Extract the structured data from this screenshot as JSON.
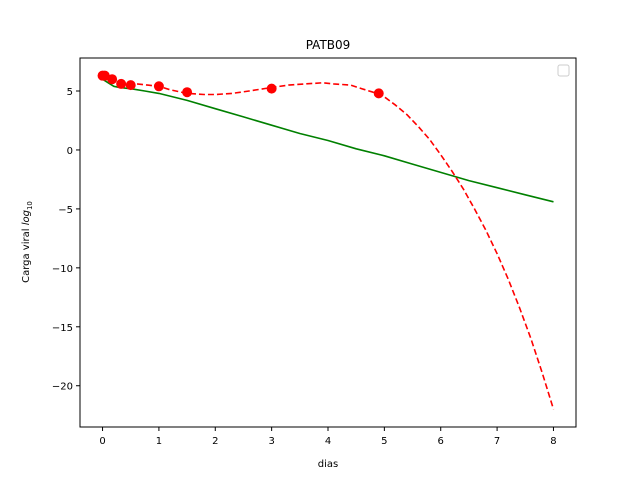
{
  "chart_data": {
    "type": "line",
    "title": "PATB09",
    "xlabel": "dias",
    "ylabel": "Carga viral",
    "ylabel_math": "log",
    "ylabel_sub": "10",
    "xlim": [
      -0.4,
      8.4
    ],
    "ylim": [
      -23.5,
      7.8
    ],
    "xticks": [
      0,
      1,
      2,
      3,
      4,
      5,
      6,
      7,
      8
    ],
    "yticks": [
      5,
      0,
      -5,
      -10,
      -15,
      -20
    ],
    "ytick_labels": [
      "5",
      "0",
      "−5",
      "−10",
      "−15",
      "−20"
    ],
    "legend": {
      "placement": "top-right",
      "entries": []
    },
    "series": [
      {
        "kind": "points",
        "color": "#ff0000",
        "x": [
          0.0,
          0.04,
          0.17,
          0.33,
          0.5,
          1.0,
          1.5,
          3.0,
          4.9
        ],
        "y": [
          6.3,
          6.3,
          6.0,
          5.6,
          5.5,
          5.4,
          4.9,
          5.2,
          4.8
        ]
      },
      {
        "kind": "dashed-line",
        "color": "#ff0000",
        "x": [
          0.0,
          0.1,
          0.2,
          0.4,
          0.6,
          0.8,
          1.0,
          1.2,
          1.5,
          1.8,
          2.0,
          2.3,
          2.6,
          3.0,
          3.3,
          3.6,
          3.9,
          4.1,
          4.4,
          4.6,
          4.8,
          5.0,
          5.2,
          5.4,
          5.6,
          5.8,
          6.0,
          6.2,
          6.4,
          6.6,
          6.8,
          7.0,
          7.2,
          7.4,
          7.6,
          7.8,
          8.0
        ],
        "y": [
          6.3,
          6.1,
          5.9,
          5.6,
          5.6,
          5.5,
          5.4,
          5.1,
          4.8,
          4.7,
          4.7,
          4.8,
          5.0,
          5.3,
          5.5,
          5.6,
          5.7,
          5.6,
          5.5,
          5.2,
          4.9,
          4.5,
          3.8,
          3.0,
          2.0,
          0.9,
          -0.4,
          -1.8,
          -3.3,
          -5.0,
          -6.8,
          -8.8,
          -11.0,
          -13.4,
          -16.0,
          -18.9,
          -22.0
        ]
      },
      {
        "kind": "solid-line",
        "color": "#008000",
        "x": [
          0.0,
          0.1,
          0.2,
          0.3,
          0.5,
          0.75,
          1.0,
          1.5,
          2.0,
          2.5,
          3.0,
          3.5,
          4.0,
          4.5,
          5.0,
          5.5,
          6.0,
          6.5,
          7.0,
          7.5,
          8.0
        ],
        "y": [
          6.0,
          5.7,
          5.4,
          5.3,
          5.2,
          5.0,
          4.8,
          4.2,
          3.5,
          2.8,
          2.1,
          1.4,
          0.8,
          0.1,
          -0.5,
          -1.2,
          -1.9,
          -2.6,
          -3.2,
          -3.8,
          -4.4
        ]
      }
    ]
  }
}
